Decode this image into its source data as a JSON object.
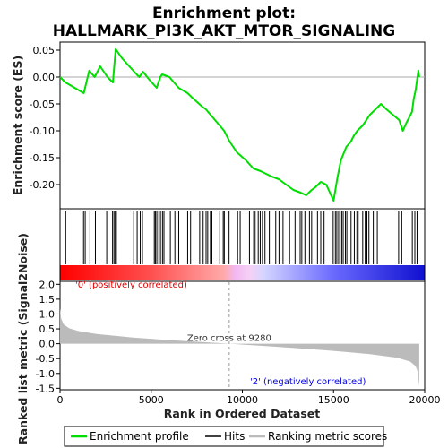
{
  "title_line1": "Enrichment plot:",
  "title_line2": "HALLMARK_PI3K_AKT_MTOR_SIGNALING",
  "chart_data": {
    "type": "line",
    "xlim": [
      0,
      20000
    ],
    "x_ticks": [
      0,
      5000,
      10000,
      15000,
      20000
    ],
    "x_tick_labels": [
      "0",
      "5000",
      "10000",
      "15000",
      "20000"
    ],
    "xlabel": "Rank in Ordered Dataset",
    "n_genes": 19700,
    "es_panel": {
      "ylabel": "Enrichment score (ES)",
      "ylim": [
        -0.245,
        0.065
      ],
      "y_ticks": [
        0.05,
        0.0,
        -0.05,
        -0.1,
        -0.15,
        -0.2
      ],
      "y_tick_labels": [
        "0.05",
        "0.00",
        "-0.05",
        "-0.10",
        "-0.15",
        "-0.20"
      ],
      "series_name": "Enrichment profile",
      "color": "#00dd00",
      "x": [
        0,
        300,
        1300,
        1600,
        1900,
        2200,
        2600,
        2900,
        3050,
        3400,
        3800,
        4200,
        4350,
        4550,
        4900,
        5300,
        5500,
        5600,
        6000,
        6500,
        7000,
        7300,
        7800,
        8000,
        8500,
        9000,
        9300,
        9700,
        10200,
        10600,
        11000,
        11300,
        11600,
        12000,
        12400,
        12800,
        13200,
        13500,
        13800,
        14000,
        14300,
        14600,
        15000,
        15200,
        15400,
        15700,
        15950,
        16100,
        16300,
        16600,
        16800,
        17000,
        17300,
        17600,
        17900,
        18600,
        18800,
        19000,
        19300,
        19400,
        19500,
        19650,
        19700
      ],
      "y": [
        0.0,
        -0.01,
        -0.03,
        0.012,
        0.0,
        0.02,
        0.0,
        -0.01,
        0.052,
        0.035,
        0.02,
        0.005,
        0.0,
        0.01,
        -0.005,
        -0.02,
        0.0,
        0.005,
        0.0,
        -0.02,
        -0.03,
        -0.04,
        -0.055,
        -0.06,
        -0.08,
        -0.1,
        -0.12,
        -0.14,
        -0.155,
        -0.17,
        -0.175,
        -0.18,
        -0.185,
        -0.19,
        -0.2,
        -0.21,
        -0.215,
        -0.22,
        -0.21,
        -0.205,
        -0.195,
        -0.2,
        -0.23,
        -0.19,
        -0.155,
        -0.13,
        -0.12,
        -0.11,
        -0.1,
        -0.09,
        -0.08,
        -0.07,
        -0.06,
        -0.05,
        -0.06,
        -0.08,
        -0.1,
        -0.085,
        -0.065,
        -0.04,
        -0.025,
        0.012,
        0.0
      ],
      "zero_line": 0
    },
    "hits_panel": {
      "series_name": "Hits",
      "positions": [
        310,
        1290,
        1380,
        1640,
        1940,
        2560,
        2880,
        2960,
        3030,
        3090,
        4040,
        4230,
        4400,
        4520,
        5170,
        5230,
        5310,
        5420,
        5510,
        5620,
        5700,
        6050,
        6300,
        6510,
        7000,
        7160,
        7660,
        7850,
        8010,
        8100,
        8250,
        8330,
        8760,
        8950,
        9010,
        9270,
        9740,
        9880,
        10390,
        10620,
        10700,
        10870,
        10980,
        11100,
        11240,
        11480,
        11830,
        12010,
        12230,
        12590,
        12890,
        13170,
        13260,
        13430,
        13680,
        13800,
        14120,
        14300,
        14480,
        14980,
        15100,
        15180,
        15280,
        15360,
        15450,
        15530,
        15650,
        15730,
        15960,
        16140,
        16280,
        16350,
        16600,
        16740,
        16830,
        16940,
        17180,
        17400,
        18570,
        18740,
        19320,
        19460,
        19580
      ]
    },
    "ranked_metric_panel": {
      "ylabel": "Ranked list metric (Signal2Noise)",
      "ylim": [
        -1.55,
        2.1
      ],
      "y_ticks": [
        2.0,
        1.5,
        1.0,
        0.5,
        0.0,
        -0.5,
        -1.0,
        -1.5
      ],
      "y_tick_labels": [
        "2.0",
        "1.5",
        "1.0",
        "0.5",
        "0.0",
        "-0.5",
        "-1.0",
        "-1.5"
      ],
      "series_name": "Ranking metric scores",
      "color": "#bbbbbb",
      "x": [
        0,
        60,
        200,
        500,
        1000,
        2000,
        4000,
        6000,
        8000,
        9280,
        11000,
        13000,
        15000,
        17000,
        18500,
        19200,
        19500,
        19620,
        19700
      ],
      "y": [
        1.2,
        0.85,
        0.65,
        0.52,
        0.43,
        0.33,
        0.21,
        0.12,
        0.05,
        0.0,
        -0.07,
        -0.15,
        -0.24,
        -0.35,
        -0.47,
        -0.6,
        -0.75,
        -0.95,
        -1.45
      ],
      "zero_cross": 9280,
      "zero_cross_label": "Zero cross at 9280",
      "pos_label": "'0' (positively correlated)",
      "neg_label": "'2' (negatively correlated)"
    },
    "legend": [
      "Enrichment profile",
      "Hits",
      "Ranking metric scores"
    ],
    "legend_placement": "bottom"
  }
}
